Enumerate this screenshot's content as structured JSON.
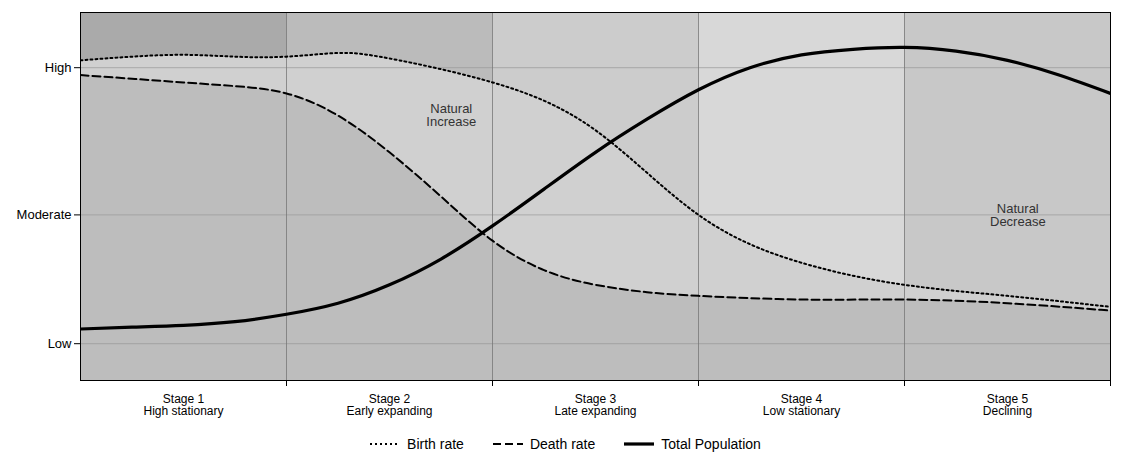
{
  "chart_data": {
    "type": "line",
    "series": [
      {
        "name": "Birth rate",
        "color": "#000000",
        "line_style": "dotted",
        "x": [
          0,
          0.5,
          1.0,
          1.5,
          2.0,
          2.5,
          3.0,
          4.0,
          5.0,
          6.0,
          7.0,
          8.0,
          9.0,
          10.0
        ],
        "values": [
          8.7,
          8.8,
          8.85,
          8.8,
          8.8,
          8.9,
          8.75,
          8.1,
          6.8,
          4.5,
          3.2,
          2.6,
          2.3,
          2.0
        ]
      },
      {
        "name": "Death rate",
        "color": "#000000",
        "line_style": "dashed",
        "x": [
          0,
          0.5,
          1.0,
          1.5,
          2.0,
          2.5,
          3.0,
          3.5,
          4.0,
          4.5,
          5.0,
          5.5,
          6.0,
          7.0,
          8.0,
          9.0,
          10.0
        ],
        "values": [
          8.3,
          8.2,
          8.1,
          8.0,
          7.8,
          7.2,
          6.2,
          5.0,
          3.8,
          3.0,
          2.6,
          2.4,
          2.3,
          2.2,
          2.2,
          2.1,
          1.9
        ]
      },
      {
        "name": "Total Population",
        "color": "#000000",
        "line_style": "solid",
        "x": [
          0,
          0.5,
          1.0,
          1.5,
          2.0,
          2.5,
          3.0,
          3.5,
          4.0,
          4.5,
          5.0,
          5.5,
          6.0,
          6.5,
          7.0,
          7.5,
          8.0,
          8.5,
          9.0,
          9.5,
          10.0
        ],
        "values": [
          1.4,
          1.45,
          1.5,
          1.6,
          1.8,
          2.1,
          2.6,
          3.3,
          4.2,
          5.2,
          6.2,
          7.1,
          7.9,
          8.5,
          8.85,
          9.0,
          9.05,
          8.95,
          8.7,
          8.3,
          7.8
        ]
      }
    ],
    "areas": [
      {
        "series": "Birth rate",
        "color": "#d0d0d0"
      },
      {
        "series": "Death rate",
        "color": "#aaaaaa"
      }
    ],
    "stages": [
      {
        "start": 0,
        "end": 2,
        "label": "Stage 1\nHigh stationary",
        "color": "#aaaaaa"
      },
      {
        "start": 2,
        "end": 4,
        "label": "Stage 2\nEarly expanding",
        "color": "#bbbbbb"
      },
      {
        "start": 4,
        "end": 6,
        "label": "Stage 3\nLate expanding",
        "color": "#cccccc"
      },
      {
        "start": 6,
        "end": 8,
        "label": "Stage 4\nLow stationary",
        "color": "#d8d8d8"
      },
      {
        "start": 8,
        "end": 10,
        "label": "Stage 5\nDeclining",
        "color": "#c8c8c8"
      }
    ],
    "annotations": [
      {
        "text": "Natural\nIncrease",
        "x": 3.6,
        "y": 7.2
      },
      {
        "text": "Natural\nDecrease",
        "x": 9.1,
        "y": 4.5
      }
    ],
    "xlim": [
      0,
      10
    ],
    "ylim": [
      0,
      10
    ],
    "yticks": [
      {
        "value": 1.0,
        "label": "Low"
      },
      {
        "value": 4.5,
        "label": "Moderate"
      },
      {
        "value": 8.5,
        "label": "High"
      }
    ],
    "grid": true,
    "tick_labels": "y",
    "legend": "bottom"
  }
}
